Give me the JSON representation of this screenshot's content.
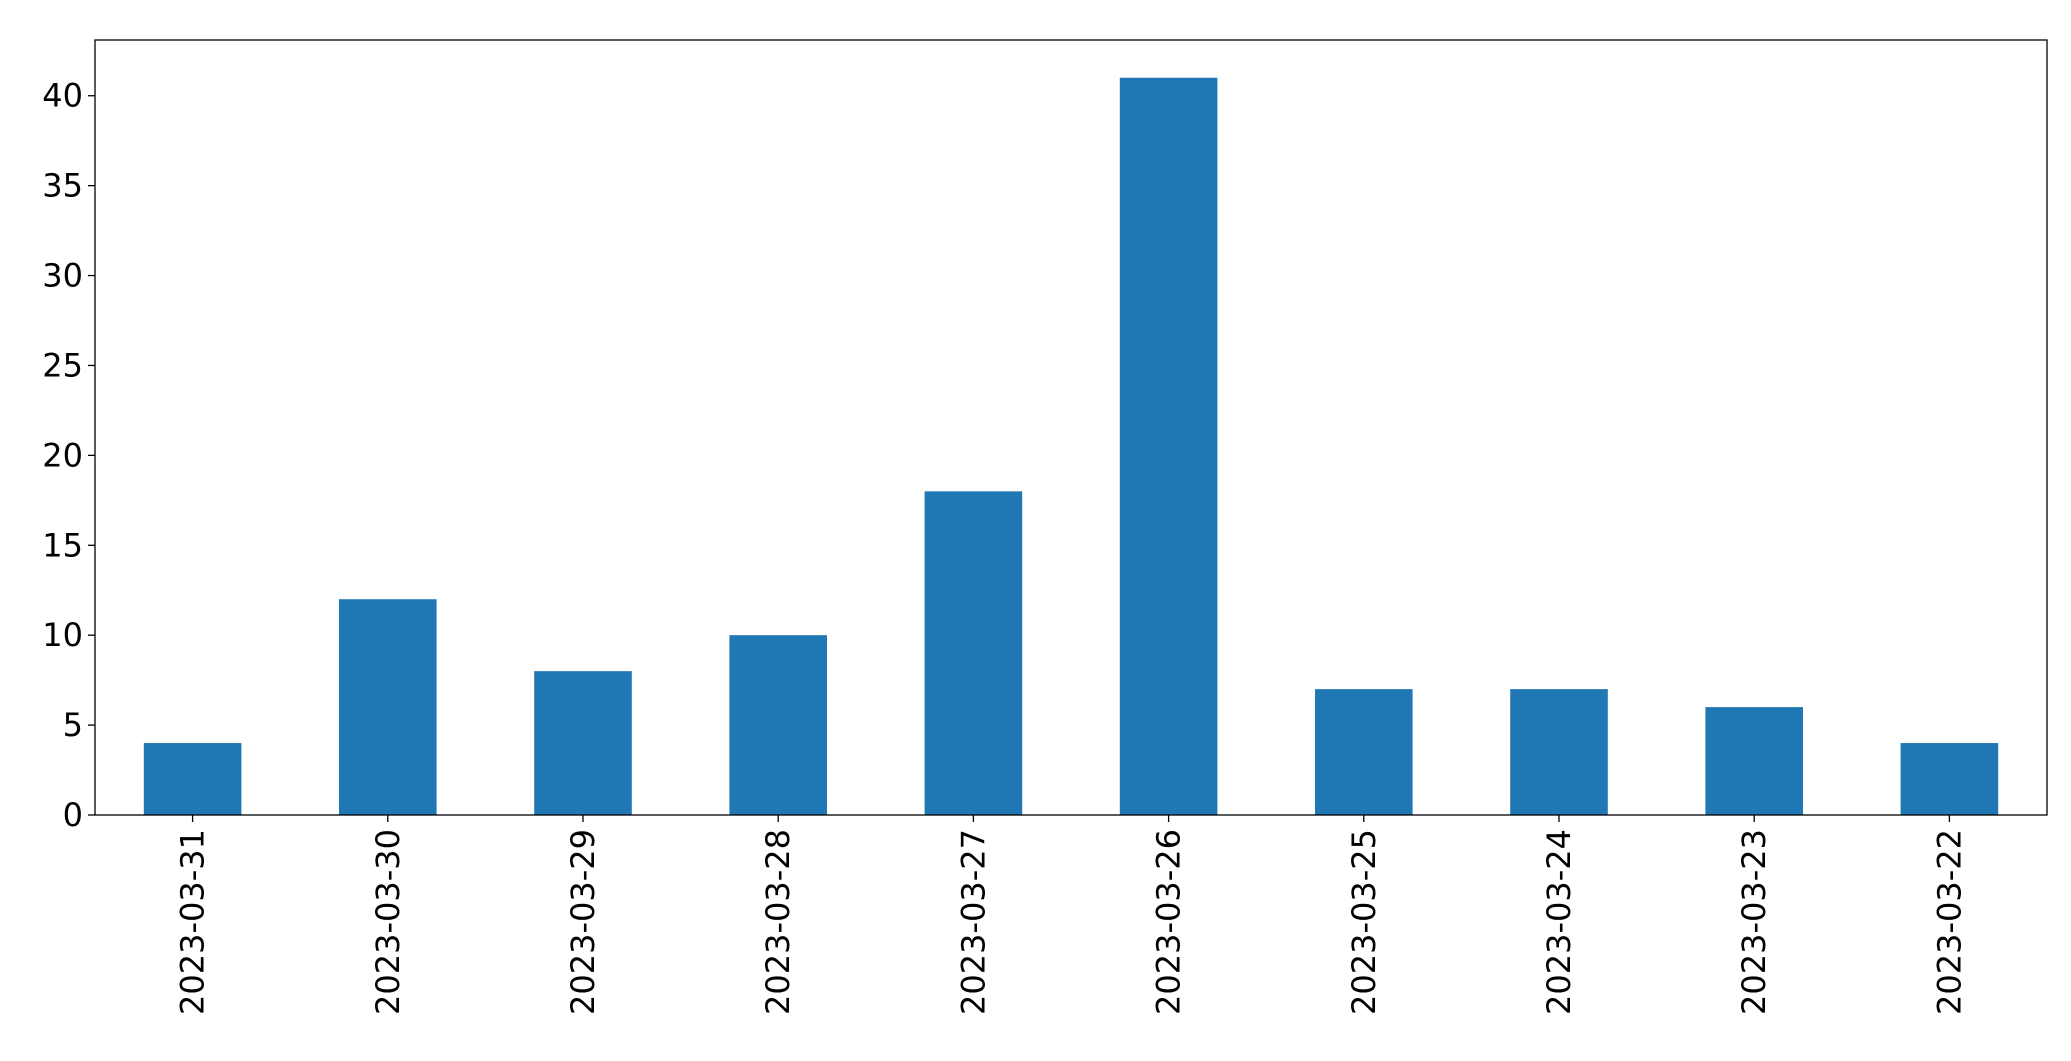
{
  "chart_data": {
    "type": "bar",
    "categories": [
      "2023-03-31",
      "2023-03-30",
      "2023-03-29",
      "2023-03-28",
      "2023-03-27",
      "2023-03-26",
      "2023-03-25",
      "2023-03-24",
      "2023-03-23",
      "2023-03-22"
    ],
    "values": [
      4,
      12,
      8,
      10,
      18,
      41,
      7,
      7,
      6,
      4
    ],
    "color": "#1f77b4",
    "ylim": [
      0,
      43.1
    ],
    "yticks": [
      0,
      5,
      10,
      15,
      20,
      25,
      30,
      35,
      40
    ],
    "grid": false
  }
}
